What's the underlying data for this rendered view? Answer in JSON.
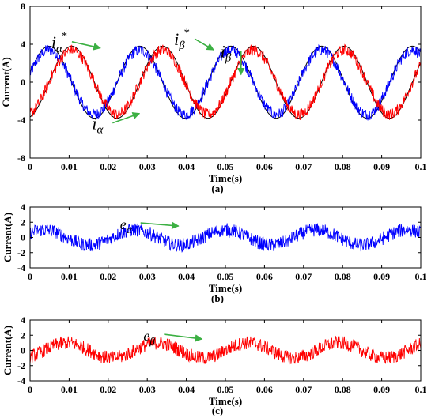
{
  "colors": {
    "alpha": "#0000ff",
    "beta": "#ff0000",
    "reference": "#000000",
    "annotation_arrow": "#3cb043"
  },
  "chart_data": [
    {
      "type": "line",
      "caption": "(a)",
      "xlabel": "Time(s)",
      "ylabel": "Current(A)",
      "xlim": [
        0,
        0.1
      ],
      "ylim": [
        -8,
        8
      ],
      "xticks": [
        0,
        0.01,
        0.02,
        0.03,
        0.04,
        0.05,
        0.06,
        0.07,
        0.08,
        0.09,
        0.1
      ],
      "xtick_labels": [
        "0",
        "0.01",
        "0.02",
        "0.03",
        "0.04",
        "0.05",
        "0.06",
        "0.07",
        "0.08",
        "0.09",
        "0.1"
      ],
      "yticks": [
        -8,
        -4,
        0,
        4,
        8
      ],
      "ytick_labels": [
        "-8",
        "-4",
        "0",
        "4",
        "8"
      ],
      "grid": false,
      "series": [
        {
          "name": "iα*",
          "color": "#000000",
          "kind": "sine",
          "amplitude": 3.8,
          "frequency_hz": 43,
          "phase_deg": 15,
          "noise": 0
        },
        {
          "name": "iβ*",
          "color": "#000000",
          "kind": "sine",
          "amplitude": 3.8,
          "frequency_hz": 43,
          "phase_deg": -75,
          "noise": 0
        },
        {
          "name": "iα",
          "color": "#0000ff",
          "kind": "sine",
          "amplitude": 3.4,
          "frequency_hz": 43,
          "phase_deg": 15,
          "noise": 0.6
        },
        {
          "name": "iβ",
          "color": "#ff0000",
          "kind": "sine",
          "amplitude": 3.4,
          "frequency_hz": 43,
          "phase_deg": -75,
          "noise": 0.6
        }
      ],
      "annotations": [
        {
          "symbol": "i",
          "sub": "α",
          "sup": "*",
          "points_to": [
            0.018,
            3.6
          ]
        },
        {
          "symbol": "i",
          "sub": "β",
          "sup": "*",
          "points_to": [
            0.047,
            3.4
          ]
        },
        {
          "symbol": "i",
          "sub": "β",
          "sup": "",
          "points_to": [
            0.054,
            0.8
          ]
        },
        {
          "symbol": "i",
          "sub": "α",
          "sup": "",
          "points_to": [
            0.028,
            -3.3
          ]
        }
      ]
    },
    {
      "type": "line",
      "caption": "(b)",
      "xlabel": "Time(s)",
      "ylabel": "Current(A)",
      "xlim": [
        0,
        0.1
      ],
      "ylim": [
        -4,
        4
      ],
      "xticks": [
        0,
        0.01,
        0.02,
        0.03,
        0.04,
        0.05,
        0.06,
        0.07,
        0.08,
        0.09,
        0.1
      ],
      "xtick_labels": [
        "0",
        "0.01",
        "0.02",
        "0.03",
        "0.04",
        "0.05",
        "0.06",
        "0.07",
        "0.08",
        "0.09",
        "0.1"
      ],
      "yticks": [
        -4,
        -2,
        0,
        2,
        4
      ],
      "ytick_labels": [
        "-4",
        "-2",
        "0",
        "2",
        "4"
      ],
      "grid": false,
      "series": [
        {
          "name": "eα",
          "color": "#0000ff",
          "kind": "sine",
          "amplitude": 1.0,
          "frequency_hz": 43,
          "phase_deg": 35,
          "noise": 0.9
        }
      ],
      "annotations": [
        {
          "symbol": "e",
          "sub": "α",
          "sup": "",
          "points_to": [
            0.038,
            1.5
          ]
        }
      ]
    },
    {
      "type": "line",
      "caption": "(c)",
      "xlabel": "Time(s)",
      "ylabel": "Current(A)",
      "xlim": [
        0,
        0.1
      ],
      "ylim": [
        -4,
        4
      ],
      "xticks": [
        0,
        0.01,
        0.02,
        0.03,
        0.04,
        0.05,
        0.06,
        0.07,
        0.08,
        0.09,
        0.1
      ],
      "xtick_labels": [
        "0",
        "0.01",
        "0.02",
        "0.03",
        "0.04",
        "0.05",
        "0.06",
        "0.07",
        "0.08",
        "0.09",
        "0.1"
      ],
      "yticks": [
        -4,
        -2,
        0,
        2,
        4
      ],
      "ytick_labels": [
        "-4",
        "-2",
        "0",
        "2",
        "4"
      ],
      "grid": false,
      "series": [
        {
          "name": "eβ",
          "color": "#ff0000",
          "kind": "sine",
          "amplitude": 1.0,
          "frequency_hz": 43,
          "phase_deg": -55,
          "noise": 0.9
        }
      ],
      "annotations": [
        {
          "symbol": "e",
          "sub": "β",
          "sup": "",
          "points_to": [
            0.044,
            1.5
          ]
        }
      ]
    }
  ]
}
